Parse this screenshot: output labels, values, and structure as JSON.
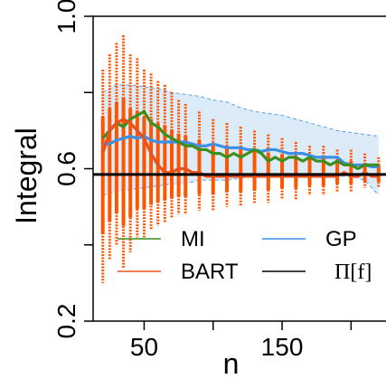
{
  "chart_data": {
    "type": "line",
    "xlabel": "n",
    "ylabel": "Integral",
    "xlim": [
      13,
      226
    ],
    "ylim": [
      0.2,
      1.0
    ],
    "x_ticks": [
      {
        "value": 50,
        "label": "50"
      },
      {
        "value": 100,
        "label": ""
      },
      {
        "value": 150,
        "label": "150"
      },
      {
        "value": 200,
        "label": ""
      }
    ],
    "y_ticks": [
      {
        "value": 0.2,
        "label": "0.2"
      },
      {
        "value": 0.4,
        "label": ""
      },
      {
        "value": 0.6,
        "label": "0.6"
      },
      {
        "value": 0.8,
        "label": ""
      },
      {
        "value": 1.0,
        "label": "1.0"
      }
    ],
    "grid": false,
    "legend_position": "bottom",
    "reference_line": {
      "name": "Π[f]",
      "y": 0.585,
      "color": "#000000"
    },
    "gp_band": {
      "x": [
        20,
        30,
        40,
        50,
        60,
        70,
        80,
        90,
        100,
        110,
        120,
        130,
        140,
        150,
        160,
        170,
        180,
        190,
        200,
        210,
        220
      ],
      "upper": [
        0.8,
        0.82,
        0.82,
        0.815,
        0.81,
        0.8,
        0.795,
        0.79,
        0.78,
        0.775,
        0.76,
        0.75,
        0.745,
        0.74,
        0.73,
        0.72,
        0.71,
        0.7,
        0.695,
        0.69,
        0.685
      ],
      "lower": [
        0.53,
        0.54,
        0.545,
        0.55,
        0.555,
        0.56,
        0.56,
        0.57,
        0.57,
        0.57,
        0.575,
        0.58,
        0.58,
        0.58,
        0.58,
        0.58,
        0.58,
        0.58,
        0.58,
        0.57,
        0.53
      ],
      "color": "#d6e7f7"
    },
    "bart_spread": {
      "x": [
        20,
        25,
        30,
        35,
        40,
        45,
        50,
        55,
        60,
        65,
        70,
        75,
        80,
        90,
        100,
        110,
        120,
        130,
        140,
        150,
        160,
        170,
        180,
        190,
        200,
        210,
        220
      ],
      "low": [
        0.3,
        0.36,
        0.4,
        0.34,
        0.38,
        0.42,
        0.42,
        0.44,
        0.45,
        0.46,
        0.47,
        0.48,
        0.48,
        0.49,
        0.49,
        0.5,
        0.5,
        0.51,
        0.51,
        0.52,
        0.52,
        0.53,
        0.53,
        0.54,
        0.54,
        0.55,
        0.55
      ],
      "high": [
        0.86,
        0.9,
        0.93,
        0.95,
        0.9,
        0.89,
        0.86,
        0.85,
        0.83,
        0.82,
        0.8,
        0.78,
        0.77,
        0.75,
        0.73,
        0.72,
        0.71,
        0.7,
        0.69,
        0.68,
        0.67,
        0.66,
        0.66,
        0.65,
        0.65,
        0.64,
        0.63
      ],
      "color": "#ff5500"
    },
    "series": [
      {
        "name": "MI",
        "color": "#3b8f1e",
        "x": [
          20,
          25,
          30,
          35,
          40,
          45,
          50,
          55,
          60,
          65,
          70,
          75,
          80,
          85,
          90,
          95,
          100,
          105,
          110,
          115,
          120,
          125,
          130,
          135,
          140,
          145,
          150,
          155,
          160,
          165,
          170,
          175,
          180,
          185,
          190,
          195,
          200,
          205,
          210,
          215,
          220
        ],
        "y": [
          0.68,
          0.7,
          0.72,
          0.71,
          0.73,
          0.74,
          0.75,
          0.72,
          0.71,
          0.69,
          0.68,
          0.67,
          0.66,
          0.66,
          0.65,
          0.65,
          0.64,
          0.64,
          0.63,
          0.64,
          0.63,
          0.64,
          0.65,
          0.64,
          0.62,
          0.63,
          0.62,
          0.63,
          0.63,
          0.62,
          0.63,
          0.62,
          0.62,
          0.61,
          0.62,
          0.61,
          0.61,
          0.6,
          0.61,
          0.61,
          0.61
        ]
      },
      {
        "name": "BART",
        "color": "#e8501c",
        "x": [
          20,
          25,
          30,
          35,
          40,
          45,
          50,
          55,
          60,
          65,
          70,
          75,
          80,
          85,
          90,
          95,
          100,
          105,
          110,
          115,
          120,
          125,
          130,
          135,
          140,
          145,
          150,
          155,
          160,
          165,
          170,
          175,
          180,
          185,
          190,
          195,
          200,
          205,
          210,
          215,
          220
        ],
        "y": [
          0.64,
          0.7,
          0.72,
          0.73,
          0.72,
          0.7,
          0.68,
          0.64,
          0.61,
          0.59,
          0.59,
          0.6,
          0.6,
          0.59,
          0.59,
          0.58,
          0.58,
          0.58,
          0.58,
          0.58,
          0.58,
          0.58,
          0.58,
          0.58,
          0.58,
          0.58,
          0.58,
          0.58,
          0.58,
          0.58,
          0.58,
          0.58,
          0.58,
          0.58,
          0.58,
          0.59,
          0.58,
          0.58,
          0.59,
          0.58,
          0.58
        ]
      },
      {
        "name": "GP",
        "color": "#3d8fe6",
        "x": [
          20,
          25,
          30,
          35,
          40,
          45,
          50,
          55,
          60,
          65,
          70,
          75,
          80,
          85,
          90,
          95,
          100,
          105,
          110,
          115,
          120,
          125,
          130,
          135,
          140,
          145,
          150,
          155,
          160,
          165,
          170,
          175,
          180,
          185,
          190,
          195,
          200,
          205,
          210,
          215,
          220
        ],
        "y": [
          0.665,
          0.665,
          0.675,
          0.68,
          0.685,
          0.68,
          0.685,
          0.675,
          0.67,
          0.67,
          0.67,
          0.67,
          0.67,
          0.665,
          0.66,
          0.66,
          0.665,
          0.66,
          0.655,
          0.655,
          0.655,
          0.65,
          0.65,
          0.645,
          0.65,
          0.65,
          0.645,
          0.64,
          0.64,
          0.64,
          0.635,
          0.63,
          0.63,
          0.63,
          0.63,
          0.615,
          0.61,
          0.61,
          0.61,
          0.605,
          0.605
        ]
      }
    ],
    "legend": [
      {
        "label": "MI",
        "color": "#3b8f1e"
      },
      {
        "label": "GP",
        "color": "#3d8fe6"
      },
      {
        "label": "BART",
        "color": "#e8501c"
      },
      {
        "label": "Π[f]",
        "color": "#000000"
      }
    ]
  }
}
